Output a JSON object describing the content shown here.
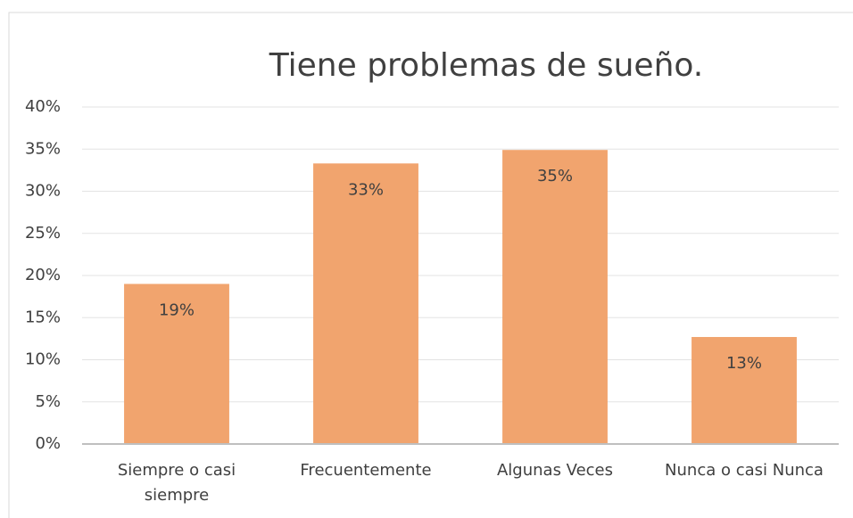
{
  "chart_data": {
    "type": "bar",
    "title": "Tiene problemas de sueño.",
    "categories": [
      "Siempre o casi siempre",
      "Frecuentemente",
      "Algunas Veces",
      "Nunca o casi Nunca"
    ],
    "values": [
      19,
      33.3,
      34.9,
      12.7
    ],
    "value_labels": [
      "19%",
      "33%",
      "35%",
      "13%"
    ],
    "color": "#f1a46e",
    "ylim": [
      0,
      40
    ],
    "yticks": [
      {
        "value": 0,
        "label": "0%"
      },
      {
        "value": 5,
        "label": "5%"
      },
      {
        "value": 10,
        "label": "10%"
      },
      {
        "value": 15,
        "label": "15%"
      },
      {
        "value": 20,
        "label": "20%"
      },
      {
        "value": 25,
        "label": "25%"
      },
      {
        "value": 30,
        "label": "30%"
      },
      {
        "value": 35,
        "label": "35%"
      },
      {
        "value": 40,
        "label": "40%"
      }
    ],
    "grid": true
  }
}
